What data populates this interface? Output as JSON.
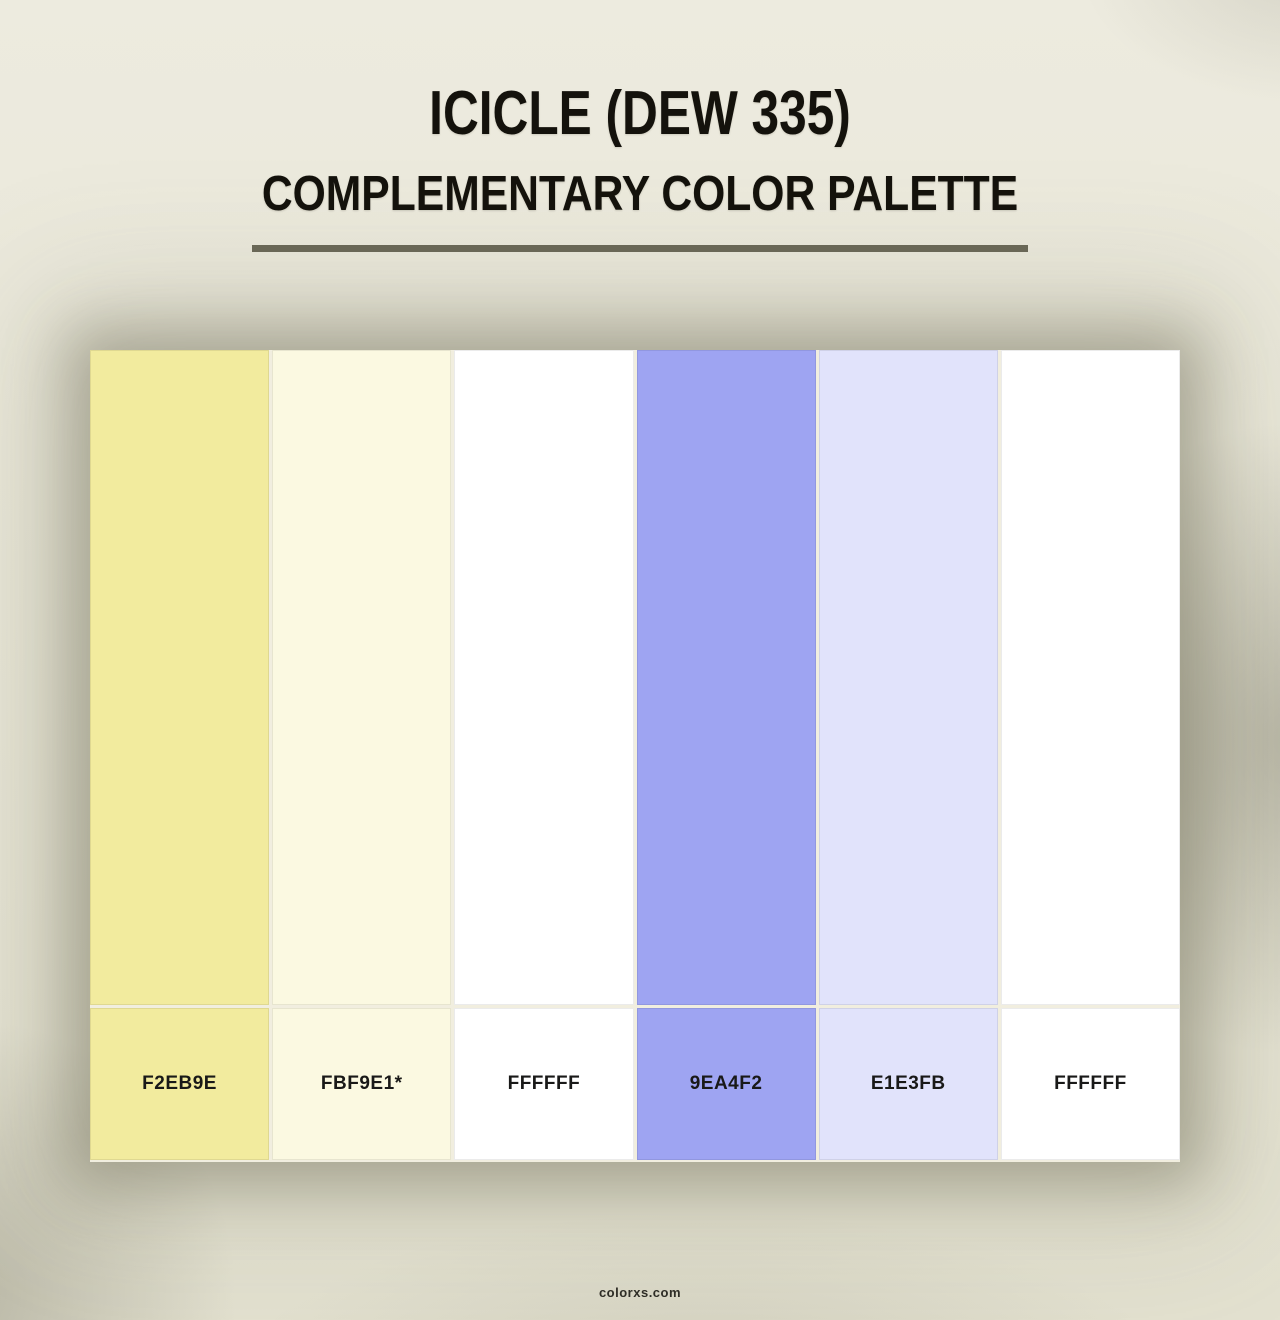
{
  "header": {
    "title": "ICICLE (DEW 335)",
    "subtitle": "COMPLEMENTARY COLOR PALETTE"
  },
  "palette": {
    "swatches": [
      {
        "hex": "#F2EB9E",
        "label": "F2EB9E"
      },
      {
        "hex": "#FBF9E1",
        "label": "FBF9E1*"
      },
      {
        "hex": "#FFFFFF",
        "label": "FFFFFF"
      },
      {
        "hex": "#9EA4F2",
        "label": "9EA4F2"
      },
      {
        "hex": "#E1E3FB",
        "label": "E1E3FB"
      },
      {
        "hex": "#FFFFFF",
        "label": "FFFFFF"
      }
    ]
  },
  "footer": {
    "brand": "colorxs.com"
  },
  "theme": {
    "background": "#E9E7D8",
    "title_color": "#14120C",
    "rule_color": "#6A6857",
    "label_color": "#191918",
    "grid_gap_color": "#F1EEDF"
  }
}
